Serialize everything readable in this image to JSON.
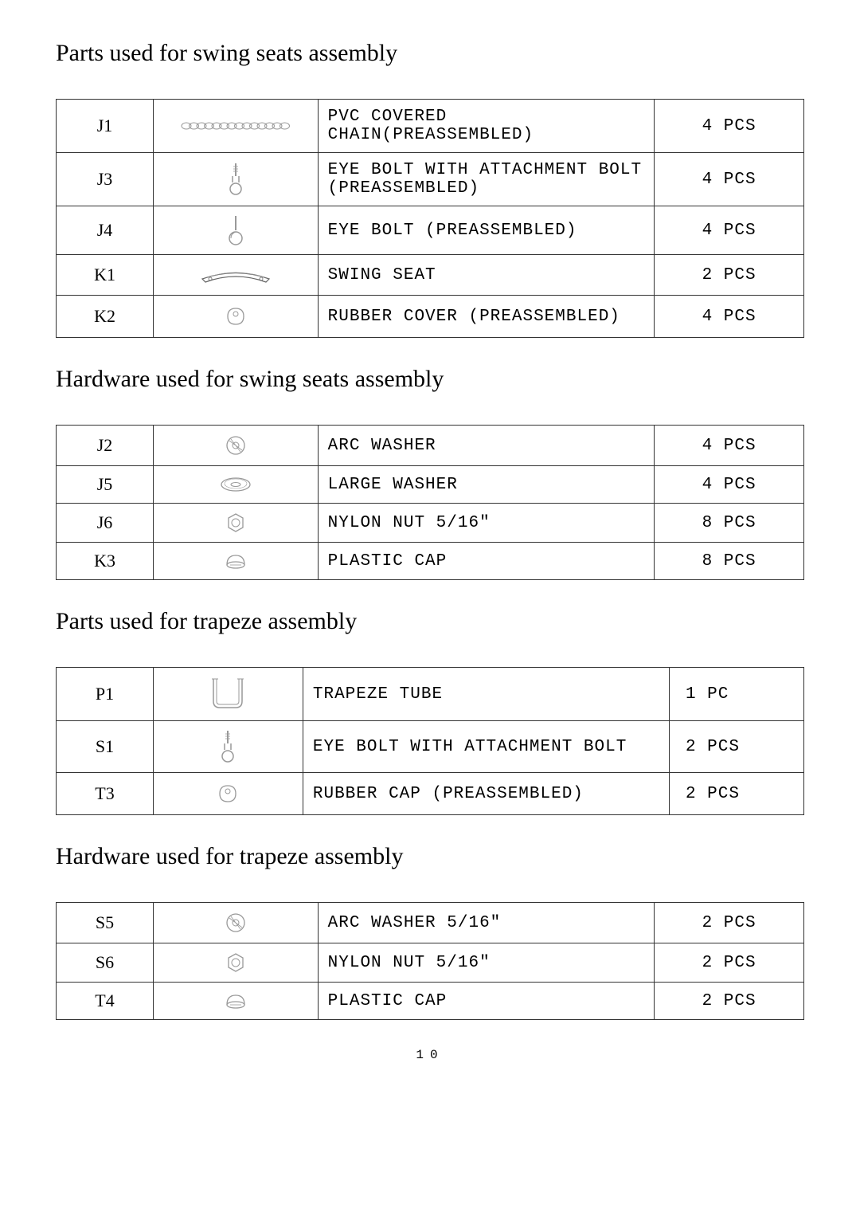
{
  "sections": [
    {
      "title": "Parts used for swing seats assembly",
      "rows": [
        {
          "id": "J1",
          "icon": "chain",
          "desc": "PVC COVERED CHAIN(PREASSEMBLED)",
          "qty": "4 PCS"
        },
        {
          "id": "J3",
          "icon": "eyebolt-attach",
          "desc": "EYE BOLT WITH ATTACHMENT BOLT (PREASSEMBLED)",
          "qty": "4 PCS"
        },
        {
          "id": "J4",
          "icon": "eyebolt",
          "desc": "EYE BOLT (PREASSEMBLED)",
          "qty": "4 PCS"
        },
        {
          "id": "K1",
          "icon": "seat",
          "desc": "SWING SEAT",
          "qty": "2 PCS"
        },
        {
          "id": "K2",
          "icon": "rubber-ring",
          "desc": "RUBBER COVER (PREASSEMBLED)",
          "qty": "4 PCS"
        }
      ]
    },
    {
      "title": "Hardware used for swing seats assembly",
      "rows": [
        {
          "id": "J2",
          "icon": "arc-washer",
          "desc": "ARC WASHER",
          "qty": "4 PCS"
        },
        {
          "id": "J5",
          "icon": "large-washer",
          "desc": "LARGE WASHER",
          "qty": "4 PCS"
        },
        {
          "id": "J6",
          "icon": "nylon-nut",
          "desc": "NYLON NUT 5/16\"",
          "qty": "8 PCS"
        },
        {
          "id": "K3",
          "icon": "plastic-cap",
          "desc": "PLASTIC CAP",
          "qty": "8 PCS"
        }
      ]
    },
    {
      "title": "Parts used for trapeze assembly",
      "tableClass": "t3",
      "rows": [
        {
          "id": "P1",
          "icon": "trapeze-tube",
          "desc": "TRAPEZE TUBE",
          "qty": "1 PC"
        },
        {
          "id": "S1",
          "icon": "eyebolt-attach",
          "desc": "EYE BOLT WITH ATTACHMENT BOLT",
          "qty": "2 PCS"
        },
        {
          "id": "T3",
          "icon": "rubber-ring",
          "desc": "RUBBER CAP (PREASSEMBLED)",
          "qty": "2 PCS"
        }
      ]
    },
    {
      "title": "Hardware used for trapeze assembly",
      "rows": [
        {
          "id": "S5",
          "icon": "arc-washer",
          "desc": "ARC WASHER 5/16\"",
          "qty": "2 PCS"
        },
        {
          "id": "S6",
          "icon": "nylon-nut",
          "desc": "NYLON NUT 5/16\"",
          "qty": "2 PCS"
        },
        {
          "id": "T4",
          "icon": "plastic-cap",
          "desc": "PLASTIC CAP",
          "qty": "2 PCS"
        }
      ]
    }
  ],
  "page_number": "10",
  "icon_stroke": "#999",
  "icon_stroke_dark": "#666"
}
